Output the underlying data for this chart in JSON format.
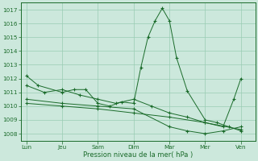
{
  "background_color": "#cce8dc",
  "grid_color": "#99ccb3",
  "line_color": "#1a6b2a",
  "marker_color": "#1a6b2a",
  "xlabel": "Pression niveau de la mer( hPa )",
  "ylim": [
    1007.5,
    1017.5
  ],
  "yticks": [
    1008,
    1009,
    1010,
    1011,
    1012,
    1013,
    1014,
    1015,
    1016,
    1017
  ],
  "xtick_labels": [
    "Lun",
    "Jeu",
    "Sam",
    "Dim",
    "Mar",
    "Mer",
    "Ven"
  ],
  "xtick_positions": [
    0,
    1,
    2,
    3,
    4,
    5,
    6
  ],
  "xlim": [
    -0.15,
    6.4
  ],
  "series": [
    {
      "x": [
        0.0,
        0.33,
        1.0,
        1.33,
        1.66,
        2.0,
        2.33,
        2.66,
        3.0,
        3.2,
        3.4,
        3.6,
        3.8,
        4.0,
        4.2,
        4.5,
        5.0,
        5.33,
        5.66,
        6.0
      ],
      "y": [
        1012.2,
        1011.5,
        1011.0,
        1011.2,
        1011.2,
        1010.2,
        1010.0,
        1010.3,
        1010.2,
        1012.8,
        1015.0,
        1016.2,
        1017.1,
        1016.2,
        1013.5,
        1011.1,
        1009.0,
        1008.8,
        1008.5,
        1008.2
      ]
    },
    {
      "x": [
        0.0,
        0.5,
        1.0,
        1.5,
        2.0,
        2.5,
        3.0,
        3.5,
        4.0,
        4.5,
        5.0,
        5.5,
        5.8,
        6.0
      ],
      "y": [
        1011.5,
        1011.0,
        1011.2,
        1010.8,
        1010.5,
        1010.2,
        1010.5,
        1010.0,
        1009.5,
        1009.2,
        1008.8,
        1008.5,
        1010.5,
        1012.0
      ]
    },
    {
      "x": [
        0.0,
        1.0,
        2.0,
        3.0,
        4.0,
        4.5,
        5.0,
        5.5,
        6.0
      ],
      "y": [
        1010.5,
        1010.2,
        1010.0,
        1009.8,
        1008.5,
        1008.2,
        1008.0,
        1008.2,
        1008.5
      ]
    },
    {
      "x": [
        0.0,
        1.0,
        2.0,
        3.0,
        4.0,
        5.0,
        6.0
      ],
      "y": [
        1010.2,
        1010.0,
        1009.8,
        1009.5,
        1009.2,
        1008.8,
        1008.3
      ]
    }
  ]
}
